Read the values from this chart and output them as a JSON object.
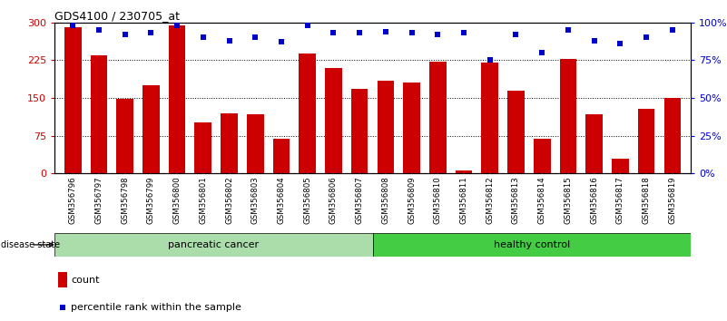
{
  "title": "GDS4100 / 230705_at",
  "samples": [
    "GSM356796",
    "GSM356797",
    "GSM356798",
    "GSM356799",
    "GSM356800",
    "GSM356801",
    "GSM356802",
    "GSM356803",
    "GSM356804",
    "GSM356805",
    "GSM356806",
    "GSM356807",
    "GSM356808",
    "GSM356809",
    "GSM356810",
    "GSM356811",
    "GSM356812",
    "GSM356813",
    "GSM356814",
    "GSM356815",
    "GSM356816",
    "GSM356817",
    "GSM356818",
    "GSM356819"
  ],
  "counts": [
    290,
    235,
    148,
    175,
    295,
    102,
    120,
    118,
    68,
    238,
    210,
    168,
    185,
    180,
    222,
    5,
    220,
    165,
    68,
    228,
    118,
    30,
    128,
    150
  ],
  "percentiles": [
    98,
    95,
    92,
    93,
    98,
    90,
    88,
    90,
    87,
    98,
    93,
    93,
    94,
    93,
    92,
    93,
    75,
    92,
    80,
    95,
    88,
    86,
    90,
    95
  ],
  "n_pancreatic": 12,
  "bar_color": "#cc0000",
  "dot_color": "#0000cc",
  "pancreatic_color": "#aaddaa",
  "healthy_color": "#44cc44",
  "xtick_bg_color": "#cccccc",
  "ylim_left": [
    0,
    300
  ],
  "ylim_right": [
    0,
    100
  ],
  "yticks_left": [
    0,
    75,
    150,
    225,
    300
  ],
  "yticks_right": [
    0,
    25,
    50,
    75,
    100
  ],
  "ylabel_left_color": "#cc0000",
  "ylabel_right_color": "#0000cc"
}
